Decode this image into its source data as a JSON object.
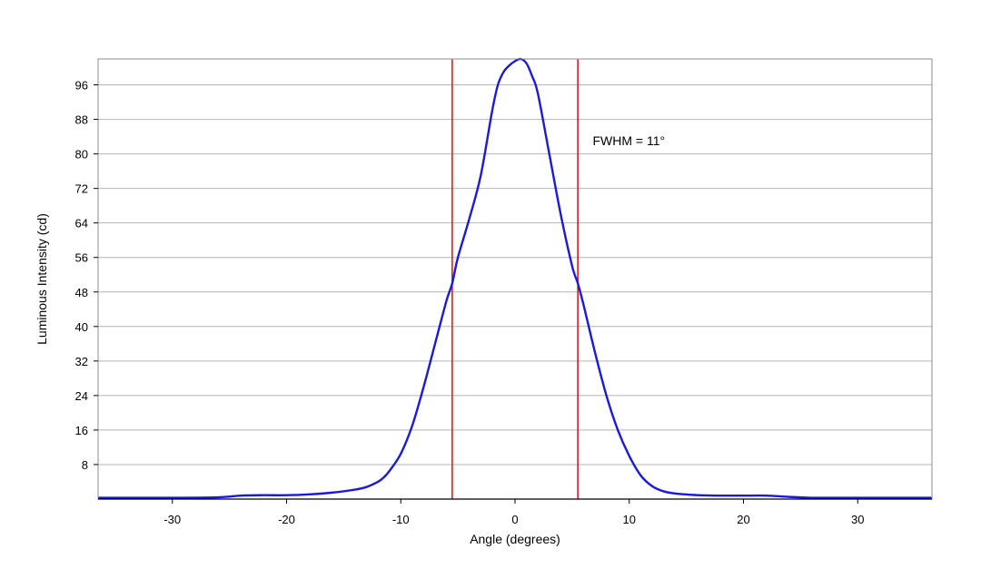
{
  "chart_data": {
    "type": "line",
    "xlabel": "Angle (degrees)",
    "ylabel": "Luminous Intensity (cd)",
    "xlim": [
      -36.5,
      36.5
    ],
    "ylim": [
      0,
      102
    ],
    "xticks": [
      -30,
      -20,
      -10,
      0,
      10,
      20,
      30
    ],
    "xtick_labels": [
      "-30",
      "-20",
      "-10",
      "0",
      "10",
      "20",
      "30"
    ],
    "yticks": [
      8,
      16,
      24,
      32,
      40,
      48,
      56,
      64,
      72,
      80,
      88,
      96
    ],
    "ytick_labels": [
      "8",
      "16",
      "24",
      "32",
      "40",
      "48",
      "56",
      "64",
      "72",
      "80",
      "88",
      "96"
    ],
    "grid": "horizontal",
    "series": [
      {
        "color": "#1a1adb",
        "x": [
          -36.5,
          -30,
          -26,
          -24,
          -22,
          -20,
          -18,
          -16,
          -14,
          -13,
          -12,
          -11.5,
          -11,
          -10,
          -9,
          -8,
          -7,
          -6,
          -5.5,
          -5,
          -4,
          -3,
          -2,
          -1.5,
          -1,
          -0.5,
          0,
          0.5,
          1,
          1.5,
          2,
          3,
          4,
          5,
          5.5,
          6,
          7,
          8,
          9,
          10,
          11,
          12,
          13,
          14,
          16,
          18,
          20,
          22,
          24,
          26,
          28,
          30,
          36.5
        ],
        "y": [
          0.3,
          0.3,
          0.4,
          0.8,
          0.9,
          0.9,
          1.1,
          1.5,
          2.2,
          2.8,
          4,
          5,
          6.5,
          10.5,
          17,
          26,
          36,
          46,
          50,
          56,
          65,
          75,
          90,
          96,
          99,
          100.5,
          101.5,
          102,
          101,
          98,
          94,
          80,
          66,
          54,
          50,
          45,
          34,
          24,
          16,
          10,
          5.5,
          3,
          1.8,
          1.3,
          0.9,
          0.8,
          0.8,
          0.8,
          0.5,
          0.3,
          0.3,
          0.3,
          0.3
        ]
      }
    ],
    "vertical_lines": [
      {
        "x": -5.5,
        "color": "#d42020"
      },
      {
        "x": 5.5,
        "color": "#d42020"
      }
    ],
    "annotations": [
      {
        "text": "FWHM = 11°",
        "x": 6.8,
        "y": 82
      }
    ]
  }
}
